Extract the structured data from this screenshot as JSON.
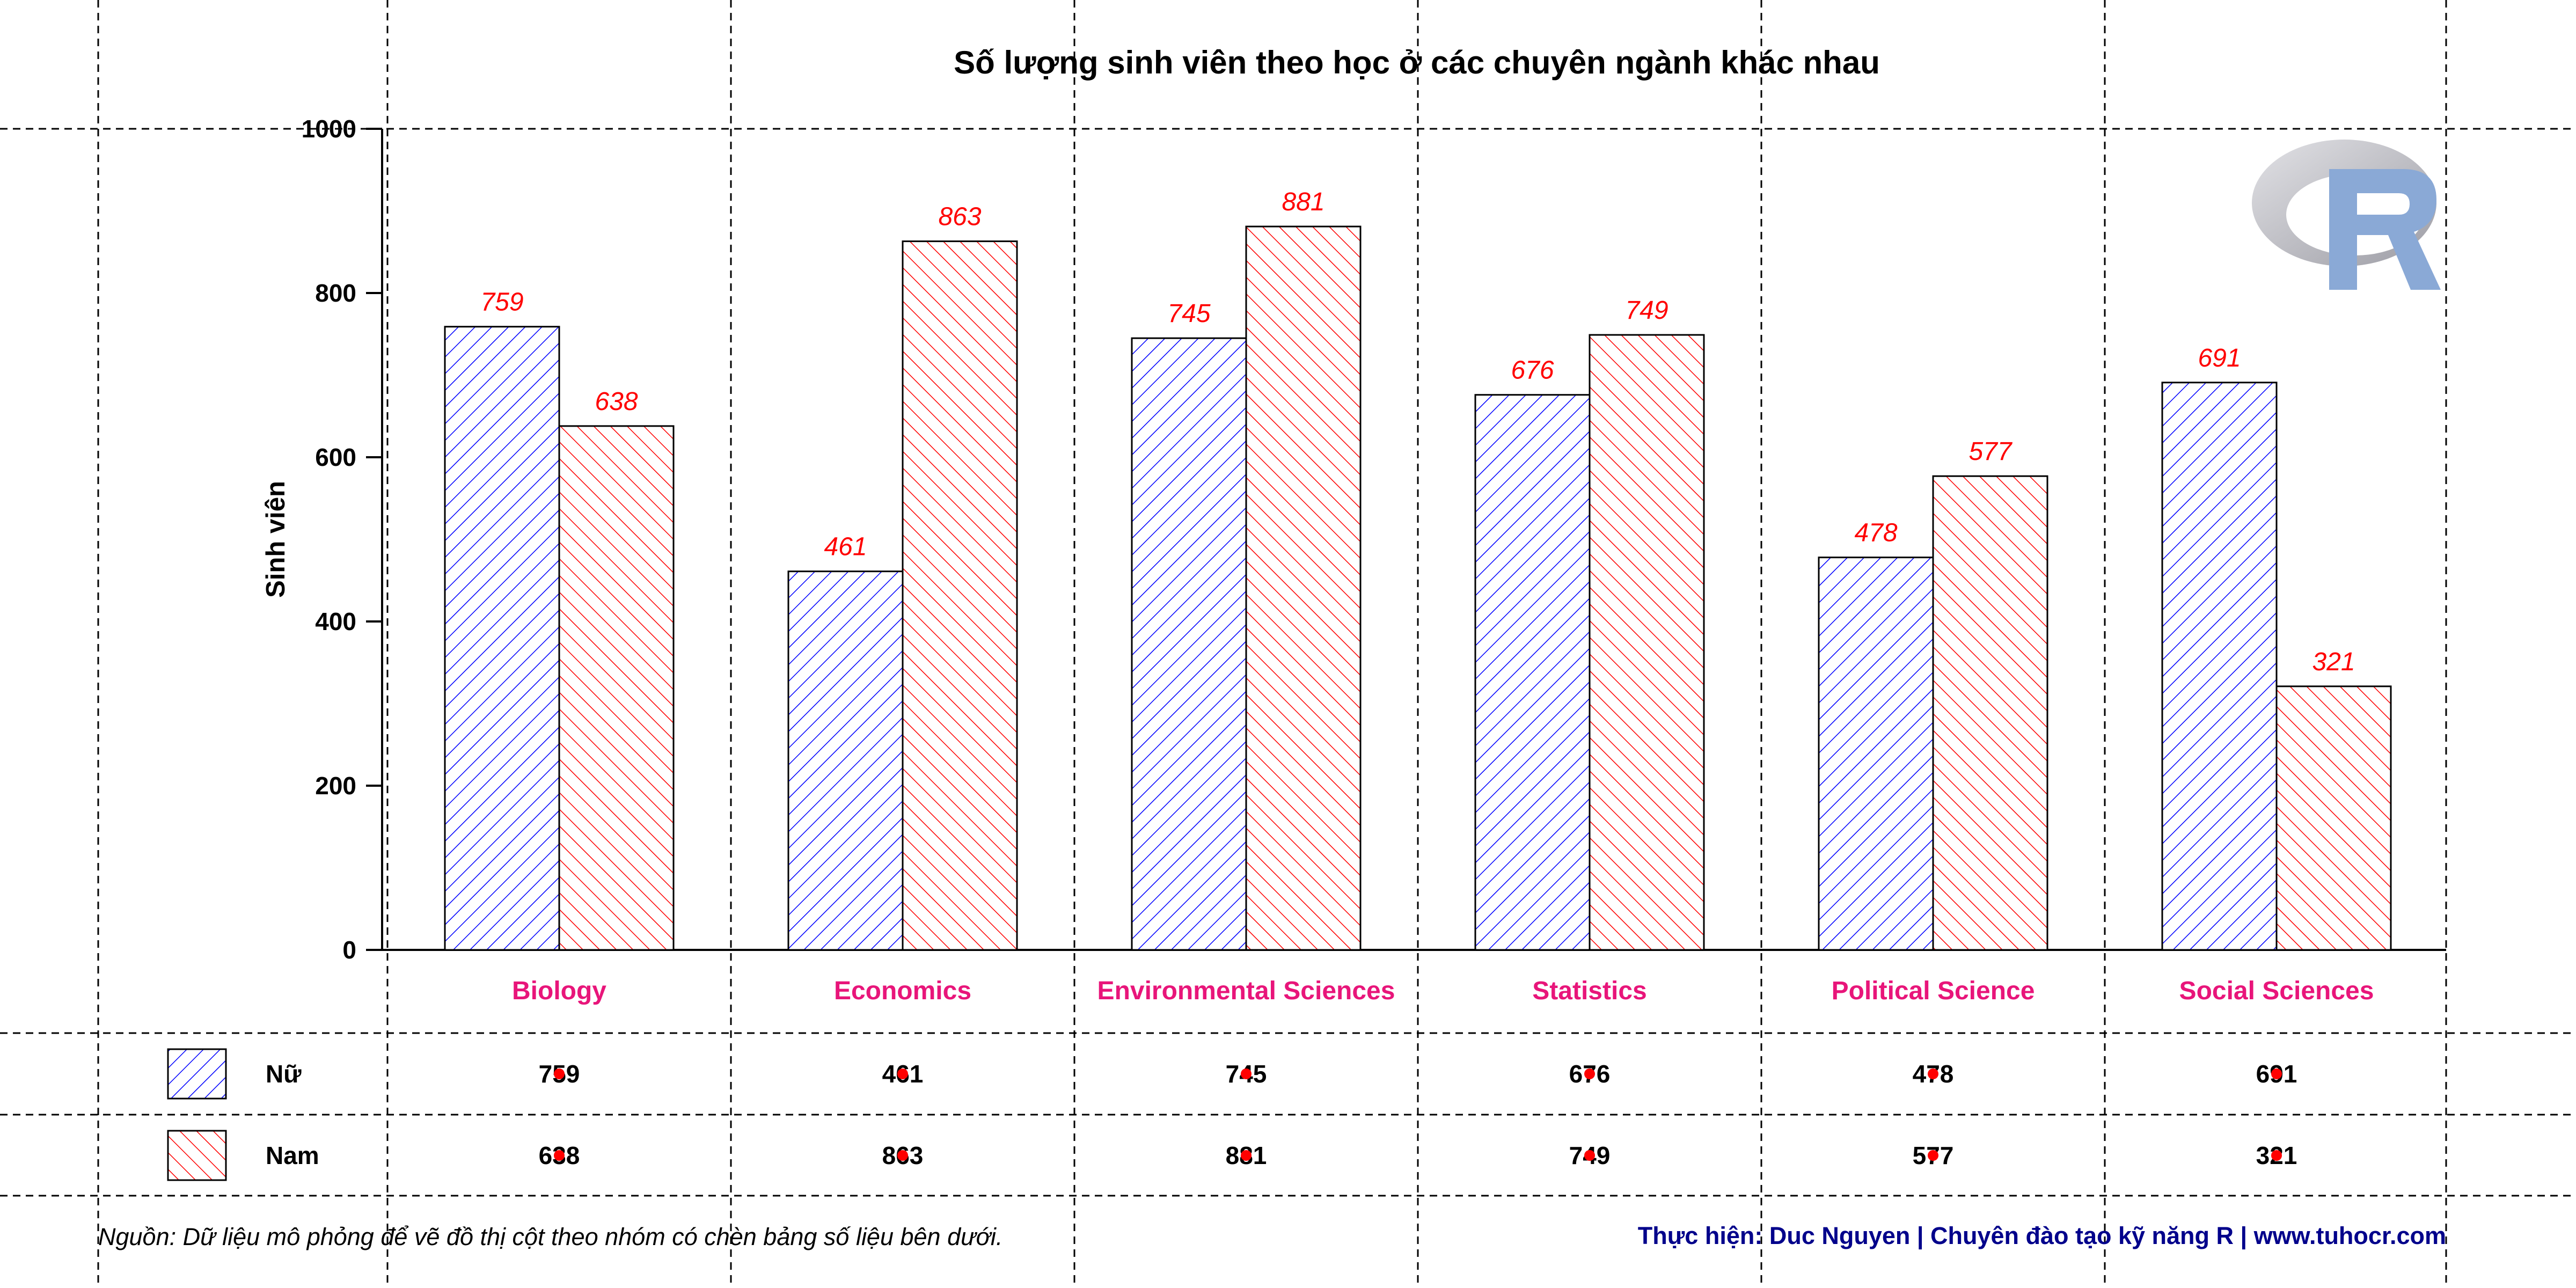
{
  "chart_data": {
    "type": "bar",
    "title": "Số lượng sinh viên theo học ở các chuyên ngành khác nhau",
    "xlabel": "",
    "ylabel": "Sinh viên",
    "ylim": [
      0,
      1000
    ],
    "yticks": [
      0,
      200,
      400,
      600,
      800,
      1000
    ],
    "grid": true,
    "categories": [
      "Biology",
      "Economics",
      "Environmental Sciences",
      "Statistics",
      "Political Science",
      "Social Sciences"
    ],
    "series": [
      {
        "name": "Nữ",
        "values": [
          759,
          461,
          745,
          676,
          478,
          691
        ],
        "color": "#0000ff",
        "hatch": "forward-diagonal"
      },
      {
        "name": "Nam",
        "values": [
          638,
          863,
          881,
          749,
          577,
          321
        ],
        "color": "#ff0000",
        "hatch": "backward-diagonal"
      }
    ],
    "category_label_color": "#e8157a",
    "value_label_color": "#ff0000",
    "table_below": true
  },
  "footer": {
    "source": "Nguồn: Dữ liệu mô phỏng để vẽ đồ thị cột theo nhóm có chèn bảng số liệu bên dưới.",
    "author": "Thực hiện: Duc Nguyen | Chuyên đào tạo kỹ năng R | www.tuhocr.com"
  },
  "logo": {
    "icon": "r-logo-icon",
    "letter": "R"
  }
}
